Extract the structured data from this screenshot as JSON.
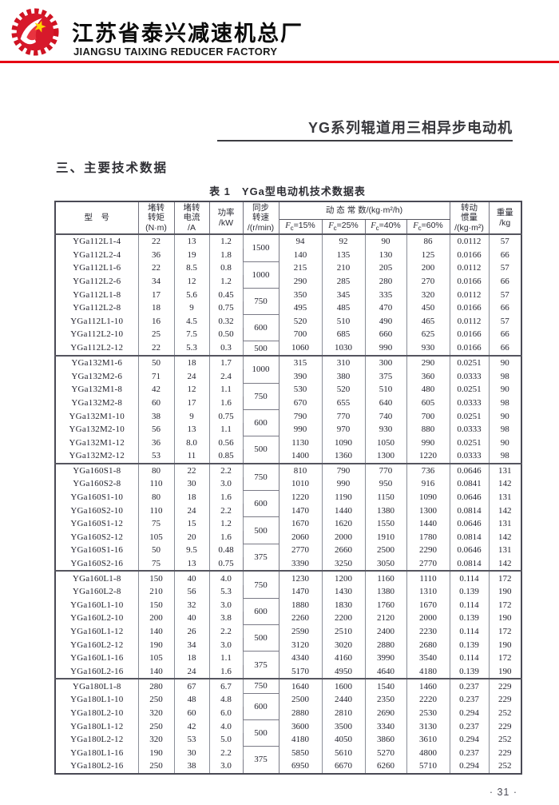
{
  "header": {
    "company_cn": "江苏省泰兴减速机总厂",
    "company_en": "JIANGSU TAIXING REDUCER FACTORY",
    "accent_color": "#e60012"
  },
  "page": {
    "title": "YG系列辊道用三相异步电动机",
    "section_heading": "三、主要技术数据",
    "table_caption": "表 1　YGa型电动机技术数据表",
    "page_number": "· 31 ·"
  },
  "table": {
    "columns": [
      {
        "key": "model",
        "lines": [
          "型　号"
        ]
      },
      {
        "key": "torque",
        "lines": [
          "堵转",
          "转矩",
          "(N·m)"
        ]
      },
      {
        "key": "current",
        "lines": [
          "堵转",
          "电流",
          "/A"
        ]
      },
      {
        "key": "power",
        "lines": [
          "功率",
          "/kW"
        ]
      },
      {
        "key": "speed",
        "lines": [
          "同步",
          "转速",
          "/(r/min)"
        ]
      },
      {
        "key": "dynamic",
        "label": "动 态 常 数/(kg·m²/h)",
        "sub": [
          "Fc=15%",
          "Fc=25%",
          "Fc=40%",
          "Fc=60%"
        ]
      },
      {
        "key": "inertia",
        "lines": [
          "转动",
          "惯量",
          "/(kg·m²)"
        ]
      },
      {
        "key": "weight",
        "lines": [
          "重量",
          "/kg"
        ]
      }
    ],
    "rows": [
      {
        "model": "YGa112L1-4",
        "torque": "22",
        "current": "13",
        "power": "1.2",
        "speed": "1500",
        "speed_span": 2,
        "fc15": "94",
        "fc25": "92",
        "fc40": "90",
        "fc60": "86",
        "inertia": "0.0112",
        "weight": "57",
        "group_start": true
      },
      {
        "model": "YGa112L2-4",
        "torque": "36",
        "current": "19",
        "power": "1.8",
        "fc15": "140",
        "fc25": "135",
        "fc40": "130",
        "fc60": "125",
        "inertia": "0.0166",
        "weight": "66"
      },
      {
        "model": "YGa112L1-6",
        "torque": "22",
        "current": "8.5",
        "power": "0.8",
        "speed": "1000",
        "speed_span": 2,
        "fc15": "215",
        "fc25": "210",
        "fc40": "205",
        "fc60": "200",
        "inertia": "0.0112",
        "weight": "57"
      },
      {
        "model": "YGa112L2-6",
        "torque": "34",
        "current": "12",
        "power": "1.2",
        "fc15": "290",
        "fc25": "285",
        "fc40": "280",
        "fc60": "270",
        "inertia": "0.0166",
        "weight": "66"
      },
      {
        "model": "YGa112L1-8",
        "torque": "17",
        "current": "5.6",
        "power": "0.45",
        "speed": "750",
        "speed_span": 2,
        "fc15": "350",
        "fc25": "345",
        "fc40": "335",
        "fc60": "320",
        "inertia": "0.0112",
        "weight": "57"
      },
      {
        "model": "YGa112L2-8",
        "torque": "18",
        "current": "9",
        "power": "0.75",
        "fc15": "495",
        "fc25": "485",
        "fc40": "470",
        "fc60": "450",
        "inertia": "0.0166",
        "weight": "66"
      },
      {
        "model": "YGa112L1-10",
        "torque": "16",
        "current": "4.5",
        "power": "0.32",
        "speed": "600",
        "speed_span": 2,
        "fc15": "520",
        "fc25": "510",
        "fc40": "490",
        "fc60": "465",
        "inertia": "0.0112",
        "weight": "57"
      },
      {
        "model": "YGa112L2-10",
        "torque": "25",
        "current": "7.5",
        "power": "0.50",
        "fc15": "700",
        "fc25": "685",
        "fc40": "660",
        "fc60": "625",
        "inertia": "0.0166",
        "weight": "66"
      },
      {
        "model": "YGa112L2-12",
        "torque": "22",
        "current": "5.3",
        "power": "0.3",
        "speed": "500",
        "speed_span": 1,
        "fc15": "1060",
        "fc25": "1030",
        "fc40": "990",
        "fc60": "930",
        "inertia": "0.0166",
        "weight": "66"
      },
      {
        "model": "YGa132M1-6",
        "torque": "50",
        "current": "18",
        "power": "1.7",
        "speed": "1000",
        "speed_span": 2,
        "fc15": "315",
        "fc25": "310",
        "fc40": "300",
        "fc60": "290",
        "inertia": "0.0251",
        "weight": "90",
        "group_start": true
      },
      {
        "model": "YGa132M2-6",
        "torque": "71",
        "current": "24",
        "power": "2.4",
        "fc15": "390",
        "fc25": "380",
        "fc40": "375",
        "fc60": "360",
        "inertia": "0.0333",
        "weight": "98"
      },
      {
        "model": "YGa132M1-8",
        "torque": "42",
        "current": "12",
        "power": "1.1",
        "speed": "750",
        "speed_span": 2,
        "fc15": "530",
        "fc25": "520",
        "fc40": "510",
        "fc60": "480",
        "inertia": "0.0251",
        "weight": "90"
      },
      {
        "model": "YGa132M2-8",
        "torque": "60",
        "current": "17",
        "power": "1.6",
        "fc15": "670",
        "fc25": "655",
        "fc40": "640",
        "fc60": "605",
        "inertia": "0.0333",
        "weight": "98"
      },
      {
        "model": "YGa132M1-10",
        "torque": "38",
        "current": "9",
        "power": "0.75",
        "speed": "600",
        "speed_span": 2,
        "fc15": "790",
        "fc25": "770",
        "fc40": "740",
        "fc60": "700",
        "inertia": "0.0251",
        "weight": "90"
      },
      {
        "model": "YGa132M2-10",
        "torque": "56",
        "current": "13",
        "power": "1.1",
        "fc15": "990",
        "fc25": "970",
        "fc40": "930",
        "fc60": "880",
        "inertia": "0.0333",
        "weight": "98"
      },
      {
        "model": "YGa132M1-12",
        "torque": "36",
        "current": "8.0",
        "power": "0.56",
        "speed": "500",
        "speed_span": 2,
        "fc15": "1130",
        "fc25": "1090",
        "fc40": "1050",
        "fc60": "990",
        "inertia": "0.0251",
        "weight": "90"
      },
      {
        "model": "YGa132M2-12",
        "torque": "53",
        "current": "11",
        "power": "0.85",
        "fc15": "1400",
        "fc25": "1360",
        "fc40": "1300",
        "fc60": "1220",
        "inertia": "0.0333",
        "weight": "98"
      },
      {
        "model": "YGa160S1-8",
        "torque": "80",
        "current": "22",
        "power": "2.2",
        "speed": "750",
        "speed_span": 2,
        "fc15": "810",
        "fc25": "790",
        "fc40": "770",
        "fc60": "736",
        "inertia": "0.0646",
        "weight": "131",
        "group_start": true
      },
      {
        "model": "YGa160S2-8",
        "torque": "110",
        "current": "30",
        "power": "3.0",
        "fc15": "1010",
        "fc25": "990",
        "fc40": "950",
        "fc60": "916",
        "inertia": "0.0841",
        "weight": "142"
      },
      {
        "model": "YGa160S1-10",
        "torque": "80",
        "current": "18",
        "power": "1.6",
        "speed": "600",
        "speed_span": 2,
        "fc15": "1220",
        "fc25": "1190",
        "fc40": "1150",
        "fc60": "1090",
        "inertia": "0.0646",
        "weight": "131"
      },
      {
        "model": "YGa160S2-10",
        "torque": "110",
        "current": "24",
        "power": "2.2",
        "fc15": "1470",
        "fc25": "1440",
        "fc40": "1380",
        "fc60": "1300",
        "inertia": "0.0814",
        "weight": "142"
      },
      {
        "model": "YGa160S1-12",
        "torque": "75",
        "current": "15",
        "power": "1.2",
        "speed": "500",
        "speed_span": 2,
        "fc15": "1670",
        "fc25": "1620",
        "fc40": "1550",
        "fc60": "1440",
        "inertia": "0.0646",
        "weight": "131"
      },
      {
        "model": "YGa160S2-12",
        "torque": "105",
        "current": "20",
        "power": "1.6",
        "fc15": "2060",
        "fc25": "2000",
        "fc40": "1910",
        "fc60": "1780",
        "inertia": "0.0814",
        "weight": "142"
      },
      {
        "model": "YGa160S1-16",
        "torque": "50",
        "current": "9.5",
        "power": "0.48",
        "speed": "375",
        "speed_span": 2,
        "fc15": "2770",
        "fc25": "2660",
        "fc40": "2500",
        "fc60": "2290",
        "inertia": "0.0646",
        "weight": "131"
      },
      {
        "model": "YGa160S2-16",
        "torque": "75",
        "current": "13",
        "power": "0.75",
        "fc15": "3390",
        "fc25": "3250",
        "fc40": "3050",
        "fc60": "2770",
        "inertia": "0.0814",
        "weight": "142"
      },
      {
        "model": "YGa160L1-8",
        "torque": "150",
        "current": "40",
        "power": "4.0",
        "speed": "750",
        "speed_span": 2,
        "fc15": "1230",
        "fc25": "1200",
        "fc40": "1160",
        "fc60": "1110",
        "inertia": "0.114",
        "weight": "172",
        "group_start": true
      },
      {
        "model": "YGa160L2-8",
        "torque": "210",
        "current": "56",
        "power": "5.3",
        "fc15": "1470",
        "fc25": "1430",
        "fc40": "1380",
        "fc60": "1310",
        "inertia": "0.139",
        "weight": "190"
      },
      {
        "model": "YGa160L1-10",
        "torque": "150",
        "current": "32",
        "power": "3.0",
        "speed": "600",
        "speed_span": 2,
        "fc15": "1880",
        "fc25": "1830",
        "fc40": "1760",
        "fc60": "1670",
        "inertia": "0.114",
        "weight": "172"
      },
      {
        "model": "YGa160L2-10",
        "torque": "200",
        "current": "40",
        "power": "3.8",
        "fc15": "2260",
        "fc25": "2200",
        "fc40": "2120",
        "fc60": "2000",
        "inertia": "0.139",
        "weight": "190"
      },
      {
        "model": "YGa160L1-12",
        "torque": "140",
        "current": "26",
        "power": "2.2",
        "speed": "500",
        "speed_span": 2,
        "fc15": "2590",
        "fc25": "2510",
        "fc40": "2400",
        "fc60": "2230",
        "inertia": "0.114",
        "weight": "172"
      },
      {
        "model": "YGa160L2-12",
        "torque": "190",
        "current": "34",
        "power": "3.0",
        "fc15": "3120",
        "fc25": "3020",
        "fc40": "2880",
        "fc60": "2680",
        "inertia": "0.139",
        "weight": "190"
      },
      {
        "model": "YGa160L1-16",
        "torque": "105",
        "current": "18",
        "power": "1.1",
        "speed": "375",
        "speed_span": 2,
        "fc15": "4340",
        "fc25": "4160",
        "fc40": "3990",
        "fc60": "3540",
        "inertia": "0.114",
        "weight": "172"
      },
      {
        "model": "YGa160L2-16",
        "torque": "140",
        "current": "24",
        "power": "1.6",
        "fc15": "5170",
        "fc25": "4950",
        "fc40": "4640",
        "fc60": "4180",
        "inertia": "0.139",
        "weight": "190"
      },
      {
        "model": "YGa180L1-8",
        "torque": "280",
        "current": "67",
        "power": "6.7",
        "speed": "750",
        "speed_span": 1,
        "fc15": "1640",
        "fc25": "1600",
        "fc40": "1540",
        "fc60": "1460",
        "inertia": "0.237",
        "weight": "229",
        "group_start": true
      },
      {
        "model": "YGa180L1-10",
        "torque": "250",
        "current": "48",
        "power": "4.8",
        "speed": "600",
        "speed_span": 2,
        "fc15": "2500",
        "fc25": "2440",
        "fc40": "2350",
        "fc60": "2220",
        "inertia": "0.237",
        "weight": "229"
      },
      {
        "model": "YGa180L2-10",
        "torque": "320",
        "current": "60",
        "power": "6.0",
        "fc15": "2880",
        "fc25": "2810",
        "fc40": "2690",
        "fc60": "2530",
        "inertia": "0.294",
        "weight": "252"
      },
      {
        "model": "YGa180L1-12",
        "torque": "250",
        "current": "42",
        "power": "4.0",
        "speed": "500",
        "speed_span": 2,
        "fc15": "3600",
        "fc25": "3500",
        "fc40": "3340",
        "fc60": "3130",
        "inertia": "0.237",
        "weight": "229"
      },
      {
        "model": "YGa180L2-12",
        "torque": "320",
        "current": "53",
        "power": "5.0",
        "fc15": "4180",
        "fc25": "4050",
        "fc40": "3860",
        "fc60": "3610",
        "inertia": "0.294",
        "weight": "252"
      },
      {
        "model": "YGa180L1-16",
        "torque": "190",
        "current": "30",
        "power": "2.2",
        "speed": "375",
        "speed_span": 2,
        "fc15": "5850",
        "fc25": "5610",
        "fc40": "5270",
        "fc60": "4800",
        "inertia": "0.237",
        "weight": "229"
      },
      {
        "model": "YGa180L2-16",
        "torque": "250",
        "current": "38",
        "power": "3.0",
        "fc15": "6950",
        "fc25": "6670",
        "fc40": "6260",
        "fc60": "5710",
        "inertia": "0.294",
        "weight": "252"
      }
    ]
  }
}
